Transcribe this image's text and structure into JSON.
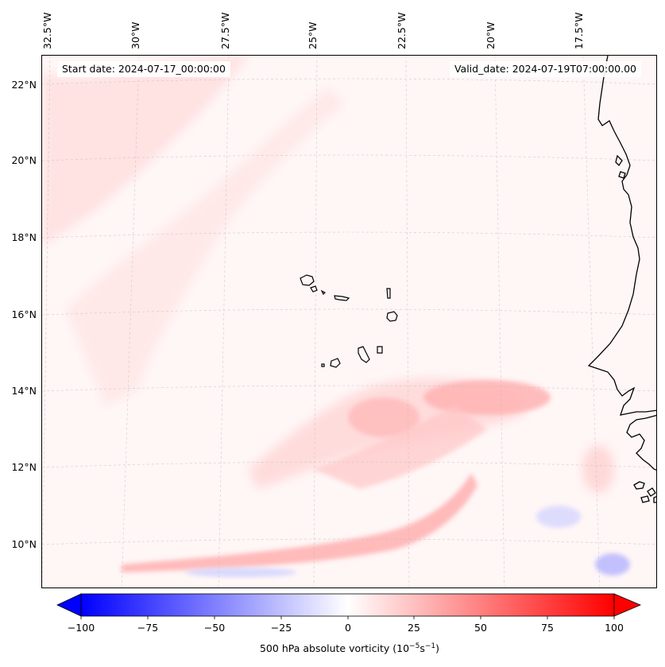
{
  "map": {
    "start_date": "Start date: 2024-07-17_00:00:00",
    "valid_date": "Valid_date: 2024-07-19T07:00:00.00",
    "lon_labels": [
      "32.5°W",
      "30°W",
      "27.5°W",
      "25°W",
      "22.5°W",
      "20°W",
      "17.5°W"
    ],
    "lat_labels": [
      "22°N",
      "20°N",
      "18°N",
      "16°N",
      "14°N",
      "12°N",
      "10°N"
    ],
    "field": "500 hPa absolute vorticity"
  },
  "colorbar": {
    "ticks": [
      "−100",
      "−75",
      "−50",
      "−25",
      "0",
      "25",
      "50",
      "75",
      "100"
    ],
    "label_prefix": "500 hPa absolute vorticity (10",
    "label_exp1": "−5",
    "label_mid": "s",
    "label_exp2": "−1",
    "label_suffix": ")",
    "min": -100,
    "max": 100,
    "negative_color": "#0000ff",
    "positive_color": "#ff0000"
  },
  "colors": {
    "background_tint": "#fff6f6",
    "coastline": "#000000"
  }
}
